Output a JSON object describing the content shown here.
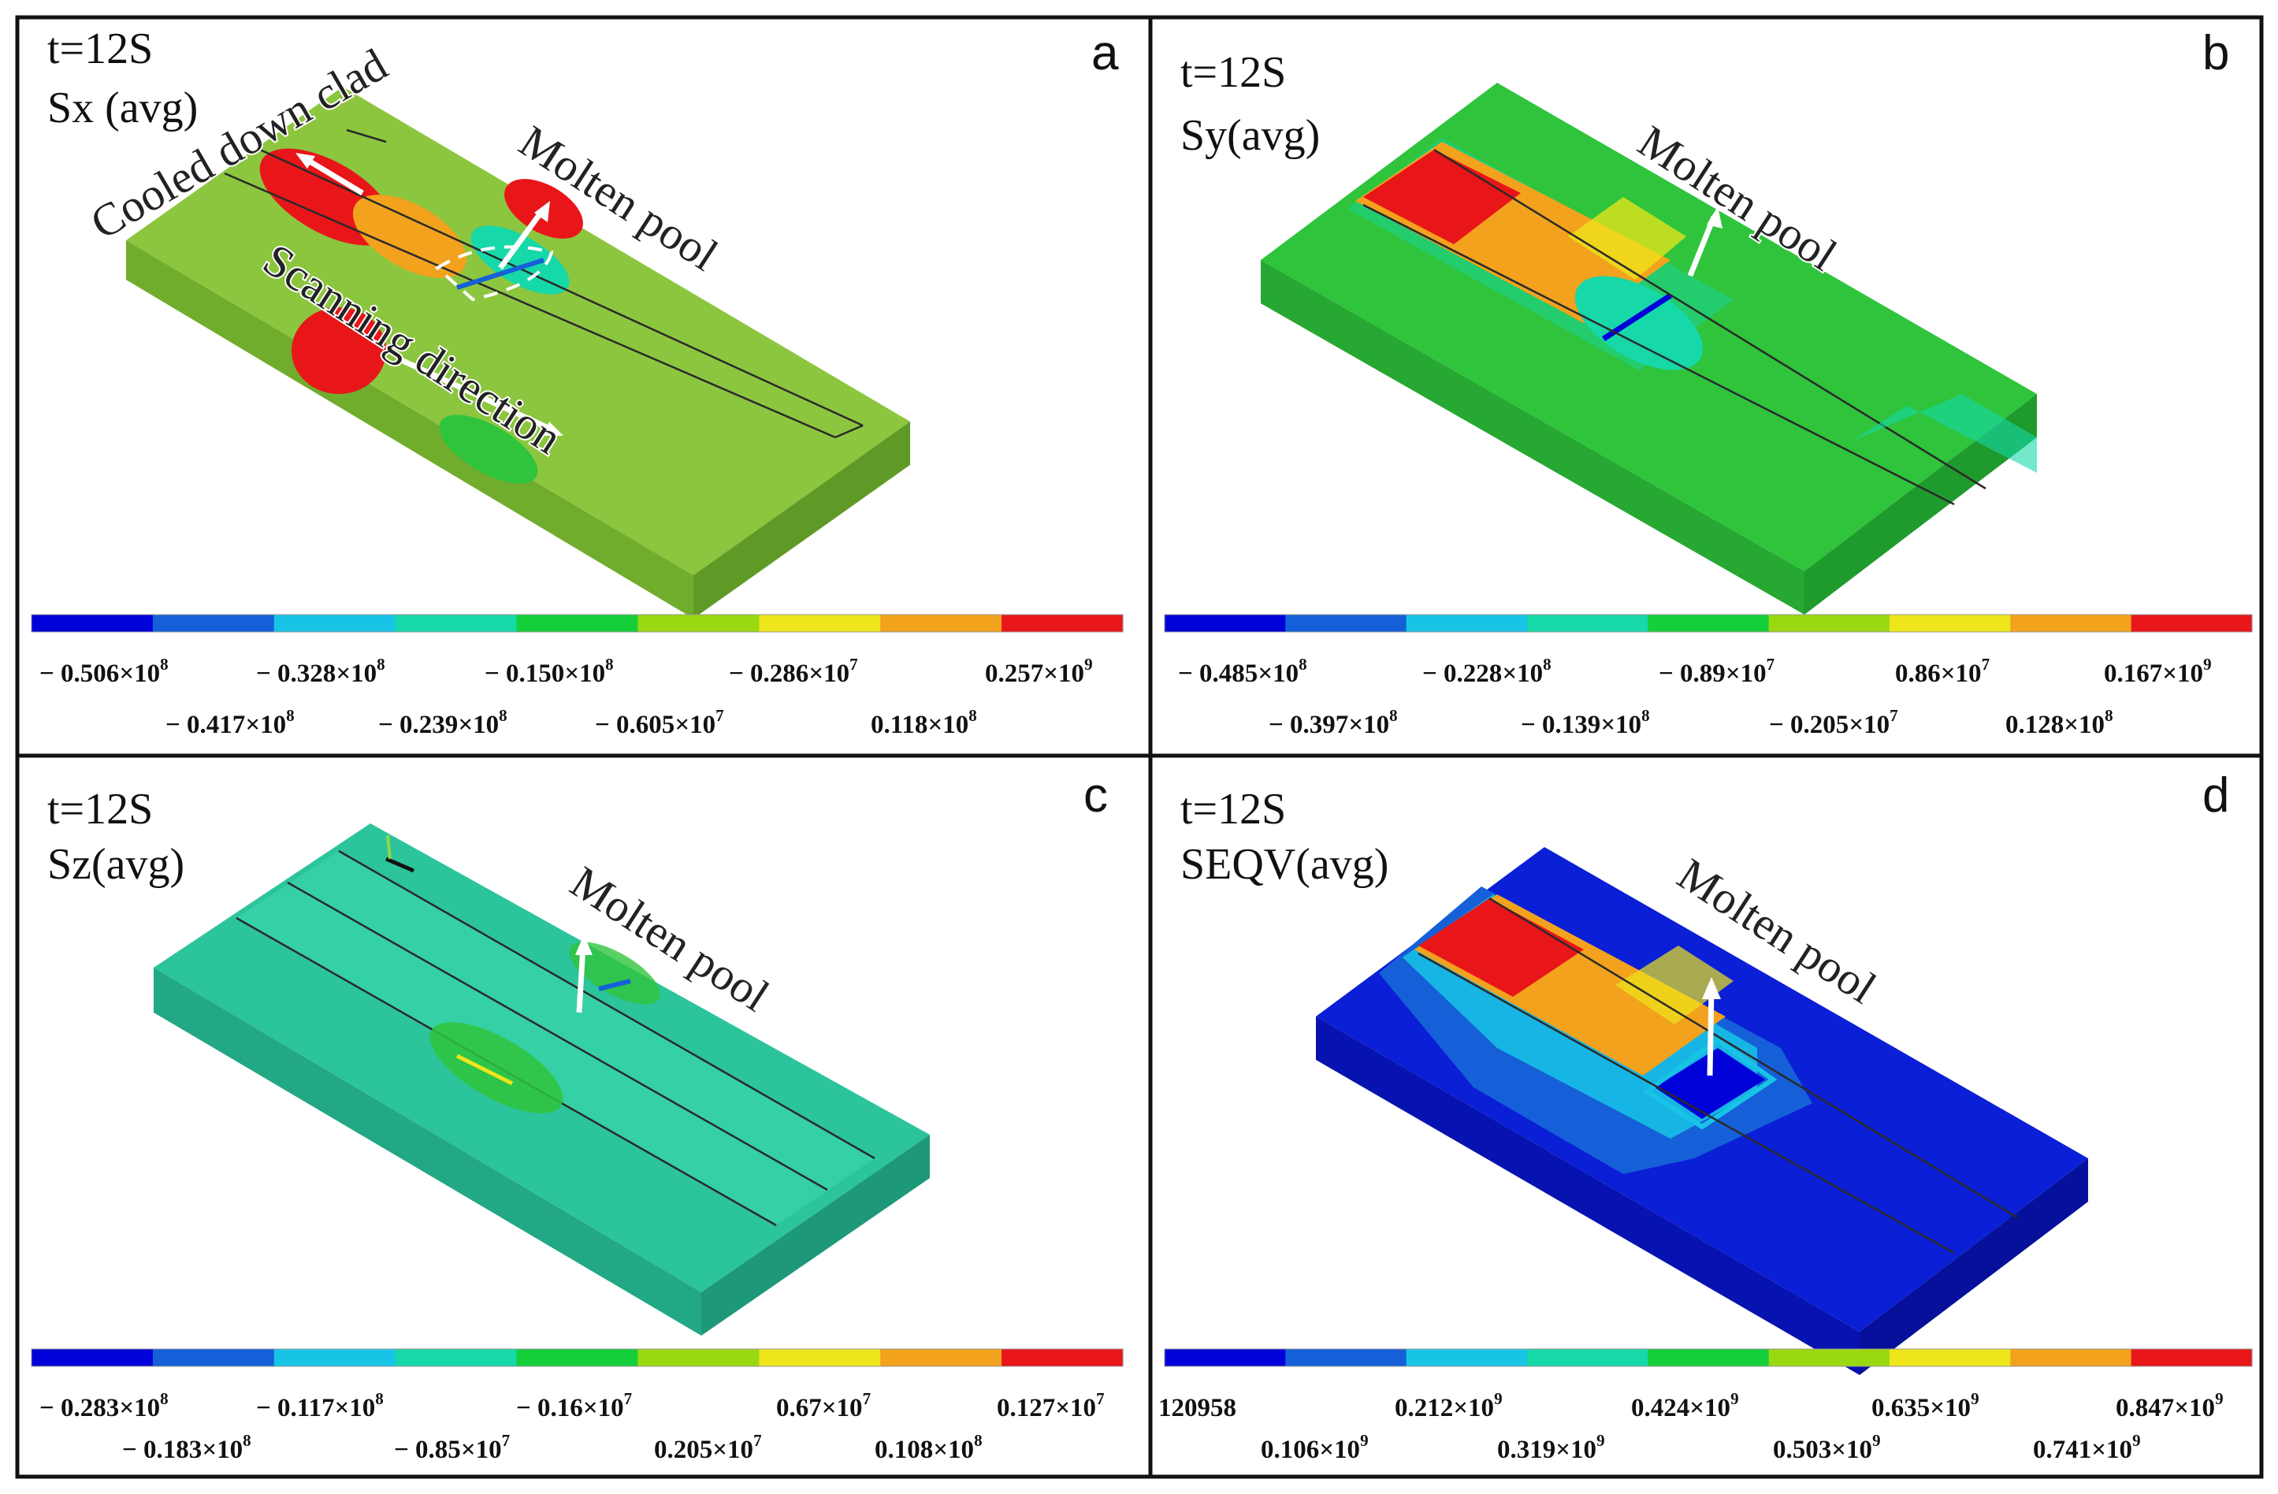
{
  "colorbar_colors": [
    "#0000d8",
    "#1560d8",
    "#18c4e6",
    "#16d8a8",
    "#14cf3a",
    "#9ad811",
    "#eee51b",
    "#f2a21d",
    "#e81619"
  ],
  "panels": [
    {
      "id": "a",
      "letter": "a",
      "time": "t=12S",
      "quantity": "Sx (avg)",
      "base_color": "#8cc63f",
      "ticks_top": [
        {
          "m": "− 0.506",
          "e": "8"
        },
        {
          "m": "− 0.328",
          "e": "8"
        },
        {
          "m": "− 0.150",
          "e": "8"
        },
        {
          "m": "− 0.286",
          "e": "7"
        },
        {
          "m": "0.257",
          "e": "9"
        }
      ],
      "ticks_bottom": [
        {
          "m": "− 0.417",
          "e": "8"
        },
        {
          "m": "− 0.239",
          "e": "8"
        },
        {
          "m": "− 0.605",
          "e": "7"
        },
        {
          "m": "0.118",
          "e": "8"
        }
      ],
      "annotations": [
        "Cooled down clad",
        "Molten pool",
        "Scanning direction"
      ]
    },
    {
      "id": "b",
      "letter": "b",
      "time": "t=12S",
      "quantity": "Sy(avg)",
      "base_color": "#2fc43c",
      "ticks_top": [
        {
          "m": "− 0.485",
          "e": "8"
        },
        {
          "m": "− 0.228",
          "e": "8"
        },
        {
          "m": "− 0.89",
          "e": "7"
        },
        {
          "m": "0.86",
          "e": "7"
        },
        {
          "m": "0.167",
          "e": "9"
        }
      ],
      "ticks_bottom": [
        {
          "m": "− 0.397",
          "e": "8"
        },
        {
          "m": "− 0.139",
          "e": "8"
        },
        {
          "m": "− 0.205",
          "e": "7"
        },
        {
          "m": "0.128",
          "e": "8"
        }
      ],
      "annotations": [
        "Molten pool"
      ]
    },
    {
      "id": "c",
      "letter": "c",
      "time": "t=12S",
      "quantity": "Sz(avg)",
      "base_color": "#2cc49a",
      "ticks_top": [
        {
          "m": "− 0.283",
          "e": "8"
        },
        {
          "m": "− 0.117",
          "e": "8"
        },
        {
          "m": "− 0.16",
          "e": "7"
        },
        {
          "m": "0.67",
          "e": "7"
        },
        {
          "m": "0.127",
          "e": "7"
        }
      ],
      "ticks_bottom": [
        {
          "m": "− 0.183",
          "e": "8"
        },
        {
          "m": "− 0.85",
          "e": "7"
        },
        {
          "m": "0.205",
          "e": "7"
        },
        {
          "m": "0.108",
          "e": "8"
        }
      ],
      "annotations": [
        "Molten pool"
      ]
    },
    {
      "id": "d",
      "letter": "d",
      "time": "t=12S",
      "quantity": "SEQV(avg)",
      "base_color": "#0a1fd6",
      "ticks_top": [
        {
          "m": "120958",
          "e": ""
        },
        {
          "m": "0.212",
          "e": "9"
        },
        {
          "m": "0.424",
          "e": "9"
        },
        {
          "m": "0.635",
          "e": "9"
        },
        {
          "m": "0.847",
          "e": "9"
        }
      ],
      "ticks_bottom": [
        {
          "m": "0.106",
          "e": "9"
        },
        {
          "m": "0.319",
          "e": "9"
        },
        {
          "m": "0.503",
          "e": "9"
        },
        {
          "m": "0.741",
          "e": "9"
        }
      ],
      "annotations": [
        "Molten pool"
      ]
    }
  ]
}
